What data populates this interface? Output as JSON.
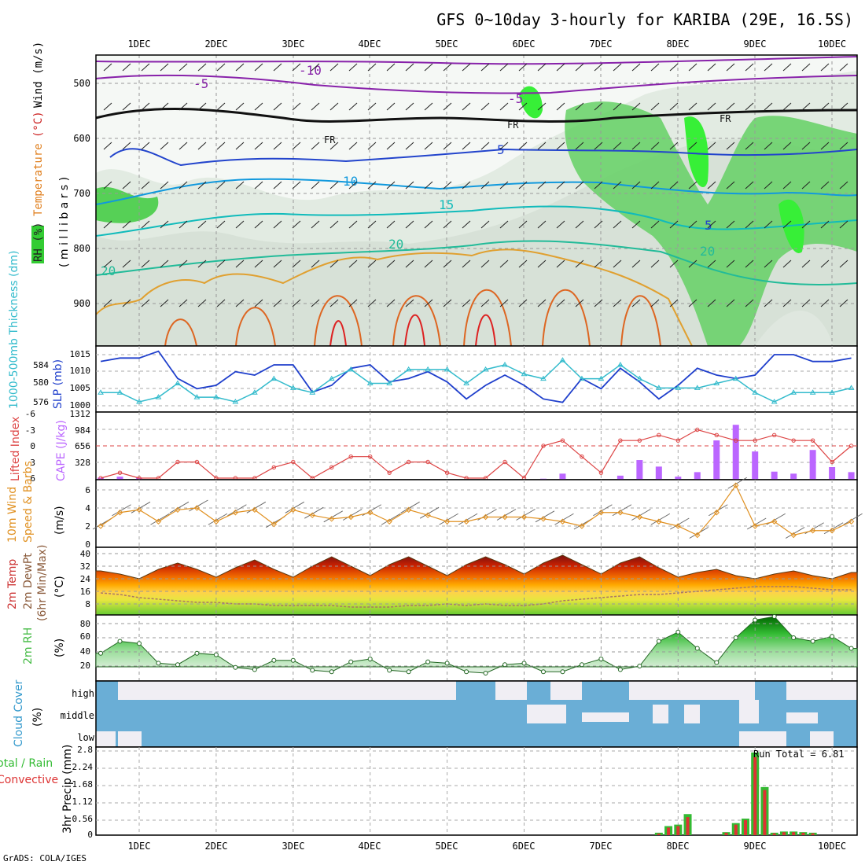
{
  "title": "GFS 0~10day 3-hourly for KARIBA (29E, 16.5S)",
  "footer": "GrADS: COLA/IGES",
  "date_labels": [
    "1DEC",
    "2DEC",
    "3DEC",
    "4DEC",
    "5DEC",
    "6DEC",
    "7DEC",
    "8DEC",
    "9DEC",
    "10DEC"
  ],
  "panels": {
    "profile": {
      "ylabel_parts": [
        {
          "text": "RH (%)",
          "color": "#22aa22"
        },
        {
          "text": "Temperature",
          "color": "#e08020"
        },
        {
          "text": "(°C)",
          "color": "#cc2222"
        },
        {
          "text": "Wind (m/s)",
          "color": "#000000"
        }
      ],
      "ylabel_units": "( m i l l i b a r s )",
      "yticks": [
        "500",
        "600",
        "700",
        "800",
        "900"
      ]
    },
    "slp": {
      "ylabel_left": "1000-500mb Thickness (dm)",
      "ylabel_right": "SLP (mb)",
      "yticks_left": [
        "584",
        "580",
        "576"
      ],
      "yticks_right": [
        "1015",
        "1010",
        "1005",
        "1000"
      ]
    },
    "cape": {
      "ylabel_left": "Lifted Index",
      "ylabel_right": "CAPE (J/kg)",
      "yticks_left": [
        "-6",
        "-3",
        "0",
        "3",
        "6"
      ],
      "yticks_right": [
        "1312",
        "984",
        "656",
        "328"
      ]
    },
    "wind10m": {
      "ylabel_line1": "10m Wind",
      "ylabel_line2": "Speed & Barbs",
      "ylabel_line3": "(m/s)",
      "yticks": [
        "6",
        "4",
        "2",
        "0"
      ]
    },
    "temp2m": {
      "ylabel_line1": "2m Temp",
      "ylabel_line2": "2m DewPt",
      "ylabel_line3": "(6hr Min/Max)",
      "ylabel_units": "(°C)",
      "yticks": [
        "40",
        "32",
        "24",
        "16",
        "8"
      ]
    },
    "rh2m": {
      "ylabel": "2m RH",
      "ylabel_units": "(%)",
      "yticks": [
        "80",
        "60",
        "40",
        "20"
      ]
    },
    "cloud": {
      "ylabel": "Cloud Cover",
      "ylabel_units": "(%)",
      "levels": [
        "high",
        "middle",
        "low"
      ]
    },
    "precip": {
      "ylabel_left1": "Total / Rain",
      "ylabel_left2": "Convective",
      "ylabel_right": "3hr Precip (mm)",
      "yticks": [
        "2.8",
        "2.24",
        "1.68",
        "1.12",
        "0.56",
        "0"
      ],
      "run_total": "Run Total = 6.81"
    }
  },
  "colors": {
    "rh_green": "#33cc33",
    "temp_orange": "#e08a1e",
    "temp_red": "#dd2222",
    "slp_blue": "#1f3fcc",
    "thickness_cyan": "#33bbcc",
    "cape_purple": "#bb66ff",
    "lifted_red": "#dd4444",
    "wind_orange": "#e09020",
    "rh2m_green": "#44bb44",
    "cloud_blue": "#6aaed6",
    "precip_green": "#33bb33",
    "precip_red": "#dd3333"
  },
  "chart_data": [
    {
      "type": "line",
      "name_key": "slp",
      "time_days": [
        0.5,
        0.75,
        1.0,
        1.25,
        1.5,
        1.75,
        2.0,
        2.25,
        2.5,
        2.75,
        3.0,
        3.25,
        3.5,
        3.75,
        4.0,
        4.25,
        4.5,
        4.75,
        5.0,
        5.25,
        5.5,
        5.75,
        6.0,
        6.25,
        6.5,
        6.75,
        7.0,
        7.25,
        7.5,
        7.75,
        8.0,
        8.25,
        8.5,
        8.75,
        9.0,
        9.25,
        9.5,
        9.75,
        10.0,
        10.25
      ],
      "series": [
        {
          "values": [
            1013,
            1014,
            1014,
            1016,
            1008,
            1005,
            1006,
            1010,
            1009,
            1012,
            1012,
            1004,
            1006,
            1011,
            1012,
            1007,
            1008,
            1010,
            1007,
            1002,
            1006,
            1009,
            1006,
            1002,
            1001,
            1008,
            1005,
            1011,
            1007,
            1002,
            1006,
            1011,
            1009,
            1008,
            1009,
            1015,
            1015,
            1013,
            1013,
            1014
          ]
        },
        {
          "values": [
            578,
            578,
            576,
            577,
            580,
            577,
            577,
            576,
            578,
            581,
            579,
            578,
            581,
            583,
            580,
            580,
            583,
            583,
            583,
            580,
            583,
            584,
            582,
            581,
            585,
            581,
            581,
            584,
            581,
            579,
            579,
            579,
            580,
            581,
            578,
            576,
            578,
            578,
            578,
            579
          ]
        }
      ]
    },
    {
      "type": "bar",
      "name_key": "cape",
      "time_days": [
        0.5,
        0.75,
        1.0,
        1.25,
        1.5,
        1.75,
        2.0,
        2.25,
        2.5,
        2.75,
        3.0,
        3.25,
        3.5,
        3.75,
        4.0,
        4.25,
        4.5,
        4.75,
        5.0,
        5.25,
        5.5,
        5.75,
        6.0,
        6.25,
        6.5,
        6.75,
        7.0,
        7.25,
        7.5,
        7.75,
        8.0,
        8.25,
        8.5,
        8.75,
        9.0,
        9.25,
        9.5,
        9.75,
        10.0,
        10.25
      ],
      "series": [
        {
          "values": [
            40,
            60,
            40,
            0,
            0,
            0,
            0,
            0,
            0,
            0,
            0,
            0,
            0,
            0,
            0,
            0,
            0,
            0,
            0,
            0,
            0,
            0,
            0,
            20,
            120,
            0,
            0,
            80,
            390,
            260,
            60,
            150,
            780,
            1090,
            560,
            160,
            120,
            590,
            250,
            150
          ]
        },
        {
          "values": [
            6,
            5,
            6,
            6,
            3,
            3,
            6,
            6,
            6,
            4,
            3,
            6,
            4,
            2,
            2,
            5,
            3,
            3,
            5,
            6,
            6,
            3,
            6,
            0,
            -1,
            2,
            5,
            -1,
            -1,
            -2,
            -1,
            -3,
            -2,
            -1,
            -1,
            -2,
            -1,
            -1,
            3,
            0
          ]
        }
      ]
    },
    {
      "type": "line",
      "name_key": "wind10m",
      "time_days": [
        0.5,
        0.75,
        1.0,
        1.25,
        1.5,
        1.75,
        2.0,
        2.25,
        2.5,
        2.75,
        3.0,
        3.25,
        3.5,
        3.75,
        4.0,
        4.25,
        4.5,
        4.75,
        5.0,
        5.25,
        5.5,
        5.75,
        6.0,
        6.25,
        6.5,
        6.75,
        7.0,
        7.25,
        7.5,
        7.75,
        8.0,
        8.25,
        8.5,
        8.75,
        9.0,
        9.25,
        9.5,
        9.75,
        10.0,
        10.25
      ],
      "values": [
        2.0,
        3.5,
        3.8,
        2.5,
        3.8,
        4.0,
        2.5,
        3.5,
        3.8,
        2.2,
        3.8,
        3.2,
        2.8,
        3.0,
        3.5,
        2.5,
        3.8,
        3.2,
        2.5,
        2.5,
        3.0,
        3.0,
        3.0,
        2.8,
        2.5,
        2.0,
        3.5,
        3.5,
        3.0,
        2.5,
        2.0,
        1.0,
        3.5,
        6.5,
        2.0,
        2.5,
        1.0,
        1.5,
        1.5,
        2.5
      ]
    },
    {
      "type": "area",
      "name_key": "temp2m",
      "time_days": [
        0.5,
        0.75,
        1.0,
        1.25,
        1.5,
        1.75,
        2.0,
        2.25,
        2.5,
        2.75,
        3.0,
        3.25,
        3.5,
        3.75,
        4.0,
        4.25,
        4.5,
        4.75,
        5.0,
        5.25,
        5.5,
        5.75,
        6.0,
        6.25,
        6.5,
        6.75,
        7.0,
        7.25,
        7.5,
        7.75,
        8.0,
        8.25,
        8.5,
        8.75,
        9.0,
        9.25,
        9.5,
        9.75,
        10.0,
        10.25
      ],
      "series": [
        {
          "values": [
            29,
            27,
            24,
            30,
            34,
            30,
            25,
            31,
            36,
            30,
            25,
            32,
            38,
            32,
            26,
            33,
            38,
            32,
            26,
            33,
            38,
            33,
            27,
            34,
            39,
            33,
            27,
            34,
            38,
            31,
            25,
            28,
            30,
            26,
            24,
            27,
            29,
            26,
            24,
            28
          ]
        },
        {
          "values": [
            15,
            14,
            12,
            11,
            10,
            9,
            9,
            8,
            8,
            7,
            7,
            7,
            7,
            6,
            6,
            6,
            7,
            7,
            8,
            7,
            8,
            7,
            7,
            8,
            10,
            11,
            12,
            13,
            14,
            14,
            15,
            16,
            17,
            18,
            19,
            19,
            19,
            18,
            17,
            17
          ]
        }
      ]
    },
    {
      "type": "area",
      "name_key": "rh2m",
      "time_days": [
        0.5,
        0.75,
        1.0,
        1.25,
        1.5,
        1.75,
        2.0,
        2.25,
        2.5,
        2.75,
        3.0,
        3.25,
        3.5,
        3.75,
        4.0,
        4.25,
        4.5,
        4.75,
        5.0,
        5.25,
        5.5,
        5.75,
        6.0,
        6.25,
        6.5,
        6.75,
        7.0,
        7.25,
        7.5,
        7.75,
        8.0,
        8.25,
        8.5,
        8.75,
        9.0,
        9.25,
        9.5,
        9.75,
        10.0,
        10.25
      ],
      "values": [
        38,
        55,
        52,
        24,
        22,
        38,
        36,
        18,
        15,
        28,
        28,
        14,
        12,
        26,
        30,
        14,
        12,
        26,
        24,
        12,
        10,
        22,
        24,
        12,
        12,
        22,
        30,
        15,
        20,
        55,
        68,
        45,
        25,
        60,
        85,
        90,
        60,
        55,
        62,
        45
      ]
    },
    {
      "type": "bar",
      "name_key": "precip",
      "time_days": [
        7.75,
        7.875,
        8.0,
        8.125,
        8.25,
        8.375,
        8.5,
        8.625,
        8.75,
        8.875,
        9.0,
        9.125,
        9.25,
        9.375,
        9.5,
        9.625,
        9.75
      ],
      "series": [
        {
          "values": [
            0.08,
            0.3,
            0.35,
            0.7,
            0,
            0,
            0,
            0.1,
            0.4,
            0.55,
            2.75,
            1.6,
            0.08,
            0.12,
            0.12,
            0.1,
            0.08
          ]
        },
        {
          "values": [
            0.05,
            0.25,
            0.3,
            0.6,
            0,
            0,
            0,
            0.08,
            0.35,
            0.5,
            2.6,
            1.5,
            0.06,
            0.1,
            0.1,
            0.08,
            0.06
          ]
        }
      ]
    }
  ]
}
